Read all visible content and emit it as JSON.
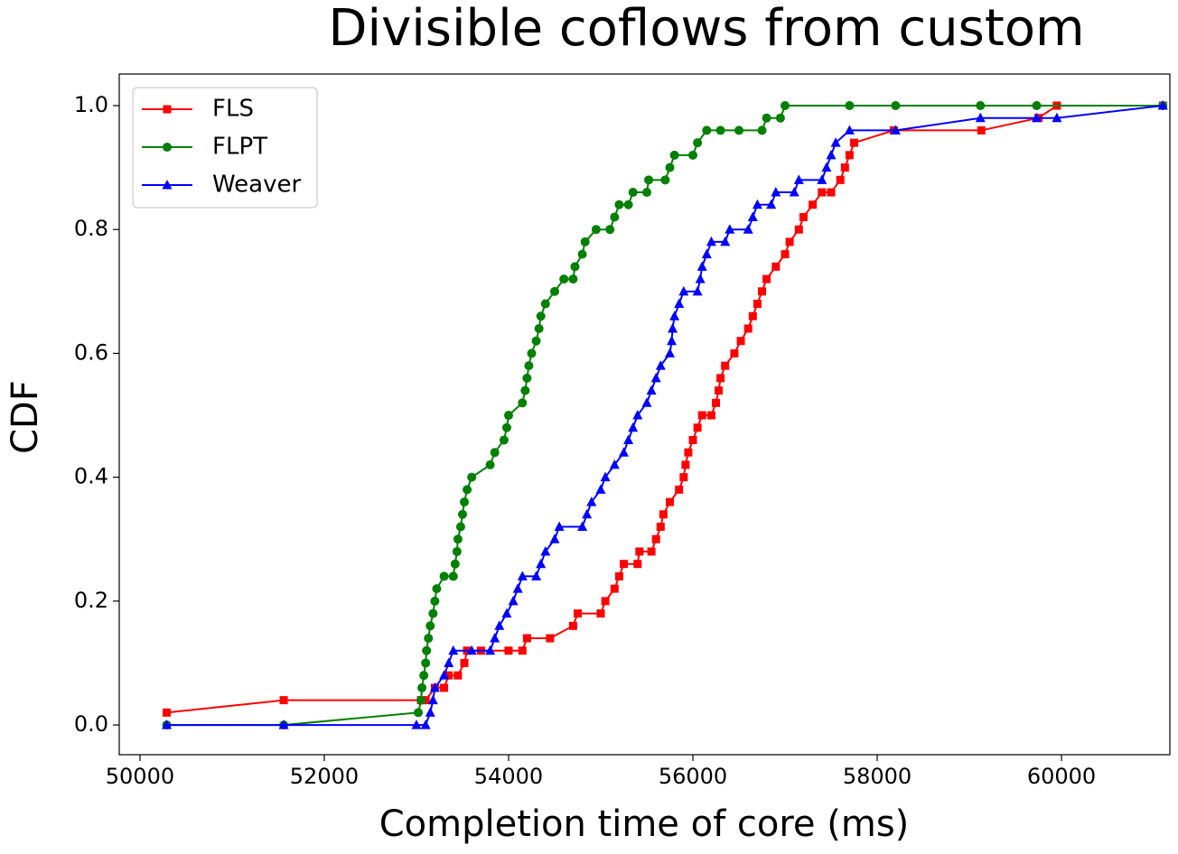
{
  "chart_data": {
    "type": "line",
    "title": "Divisible coflows from custom",
    "x_label": "Completion time of core (ms)",
    "y_label": "CDF",
    "xlim": [
      49775,
      61176
    ],
    "ylim": [
      -0.048,
      1.051
    ],
    "xticks": [
      50000,
      52000,
      54000,
      56000,
      58000,
      60000
    ],
    "yticks": [
      {
        "value": 0,
        "label": "0.0"
      },
      0.2,
      0.4,
      0.6,
      0.8,
      {
        "value": 1,
        "label": "1.0"
      }
    ],
    "legend": "upper left",
    "series": [
      {
        "name": "FLS",
        "color": "#ff0000",
        "marker": "square",
        "x": [
          50290,
          51560,
          53050,
          53100,
          53200,
          53300,
          53350,
          53450,
          53520,
          53550,
          53700,
          54000,
          54150,
          54200,
          54450,
          54700,
          54750,
          55000,
          55050,
          55150,
          55200,
          55250,
          55400,
          55420,
          55550,
          55600,
          55650,
          55680,
          55750,
          55850,
          55900,
          55920,
          55950,
          56000,
          56050,
          56100,
          56200,
          56250,
          56280,
          56300,
          56350,
          56450,
          56520,
          56600,
          56650,
          56700,
          56750,
          56800,
          56900,
          57000,
          57050,
          57150,
          57200,
          57300,
          57400,
          57500,
          57600,
          57650,
          57700,
          57750,
          58180,
          59130,
          59750,
          59950,
          61100
        ],
        "values": [
          0.02,
          0.04,
          0.04,
          0.04,
          0.06,
          0.06,
          0.08,
          0.08,
          0.1,
          0.12,
          0.12,
          0.12,
          0.12,
          0.14,
          0.14,
          0.16,
          0.18,
          0.18,
          0.2,
          0.22,
          0.24,
          0.26,
          0.26,
          0.28,
          0.28,
          0.3,
          0.32,
          0.34,
          0.36,
          0.38,
          0.4,
          0.42,
          0.44,
          0.46,
          0.48,
          0.5,
          0.5,
          0.52,
          0.54,
          0.56,
          0.58,
          0.6,
          0.62,
          0.64,
          0.66,
          0.68,
          0.7,
          0.72,
          0.74,
          0.76,
          0.78,
          0.8,
          0.82,
          0.84,
          0.86,
          0.86,
          0.88,
          0.9,
          0.92,
          0.94,
          0.96,
          0.96,
          0.98,
          1.0,
          1.0
        ]
      },
      {
        "name": "FLPT",
        "color": "#008000",
        "marker": "circle",
        "x": [
          50290,
          51560,
          53020,
          53050,
          53060,
          53080,
          53100,
          53110,
          53130,
          53150,
          53180,
          53200,
          53220,
          53300,
          53400,
          53420,
          53440,
          53450,
          53480,
          53500,
          53520,
          53550,
          53600,
          53800,
          53850,
          53950,
          53980,
          54000,
          54150,
          54180,
          54200,
          54220,
          54250,
          54300,
          54330,
          54350,
          54400,
          54500,
          54600,
          54700,
          54720,
          54800,
          54830,
          54950,
          55100,
          55150,
          55200,
          55300,
          55350,
          55500,
          55520,
          55700,
          55750,
          55800,
          56000,
          56050,
          56150,
          56300,
          56500,
          56750,
          56800,
          56950,
          57000,
          57700,
          58200,
          59120,
          59730,
          61100
        ],
        "values": [
          0.0,
          0.0,
          0.02,
          0.04,
          0.06,
          0.08,
          0.1,
          0.12,
          0.14,
          0.16,
          0.18,
          0.2,
          0.22,
          0.24,
          0.24,
          0.26,
          0.28,
          0.3,
          0.32,
          0.34,
          0.36,
          0.38,
          0.4,
          0.42,
          0.44,
          0.46,
          0.48,
          0.5,
          0.52,
          0.54,
          0.56,
          0.58,
          0.6,
          0.62,
          0.64,
          0.66,
          0.68,
          0.7,
          0.72,
          0.72,
          0.74,
          0.76,
          0.78,
          0.8,
          0.8,
          0.82,
          0.84,
          0.84,
          0.86,
          0.86,
          0.88,
          0.88,
          0.9,
          0.92,
          0.92,
          0.94,
          0.96,
          0.96,
          0.96,
          0.96,
          0.98,
          0.98,
          1.0,
          1.0,
          1.0,
          1.0,
          1.0,
          1.0
        ]
      },
      {
        "name": "Weaver",
        "color": "#0000ff",
        "marker": "triangle",
        "x": [
          50290,
          51560,
          53000,
          53100,
          53150,
          53180,
          53200,
          53300,
          53350,
          53400,
          53600,
          53800,
          53850,
          53900,
          53980,
          54050,
          54100,
          54150,
          54300,
          54350,
          54400,
          54500,
          54550,
          54800,
          54850,
          54900,
          55000,
          55050,
          55150,
          55250,
          55300,
          55350,
          55400,
          55500,
          55550,
          55600,
          55650,
          55750,
          55770,
          55780,
          55800,
          55850,
          55900,
          56050,
          56080,
          56100,
          56150,
          56200,
          56350,
          56400,
          56600,
          56650,
          56700,
          56850,
          56900,
          57100,
          57150,
          57400,
          57450,
          57500,
          57550,
          57700,
          58200,
          59120,
          59730,
          59950,
          61100
        ],
        "values": [
          0.0,
          0.0,
          0.0,
          0.0,
          0.02,
          0.04,
          0.06,
          0.08,
          0.1,
          0.12,
          0.12,
          0.12,
          0.14,
          0.16,
          0.18,
          0.2,
          0.22,
          0.24,
          0.24,
          0.26,
          0.28,
          0.3,
          0.32,
          0.32,
          0.34,
          0.36,
          0.38,
          0.4,
          0.42,
          0.44,
          0.46,
          0.48,
          0.5,
          0.52,
          0.54,
          0.56,
          0.58,
          0.6,
          0.62,
          0.64,
          0.66,
          0.68,
          0.7,
          0.7,
          0.72,
          0.74,
          0.76,
          0.78,
          0.78,
          0.8,
          0.8,
          0.82,
          0.84,
          0.84,
          0.86,
          0.86,
          0.88,
          0.88,
          0.9,
          0.92,
          0.94,
          0.96,
          0.96,
          0.98,
          0.98,
          0.98,
          1.0
        ]
      }
    ]
  }
}
